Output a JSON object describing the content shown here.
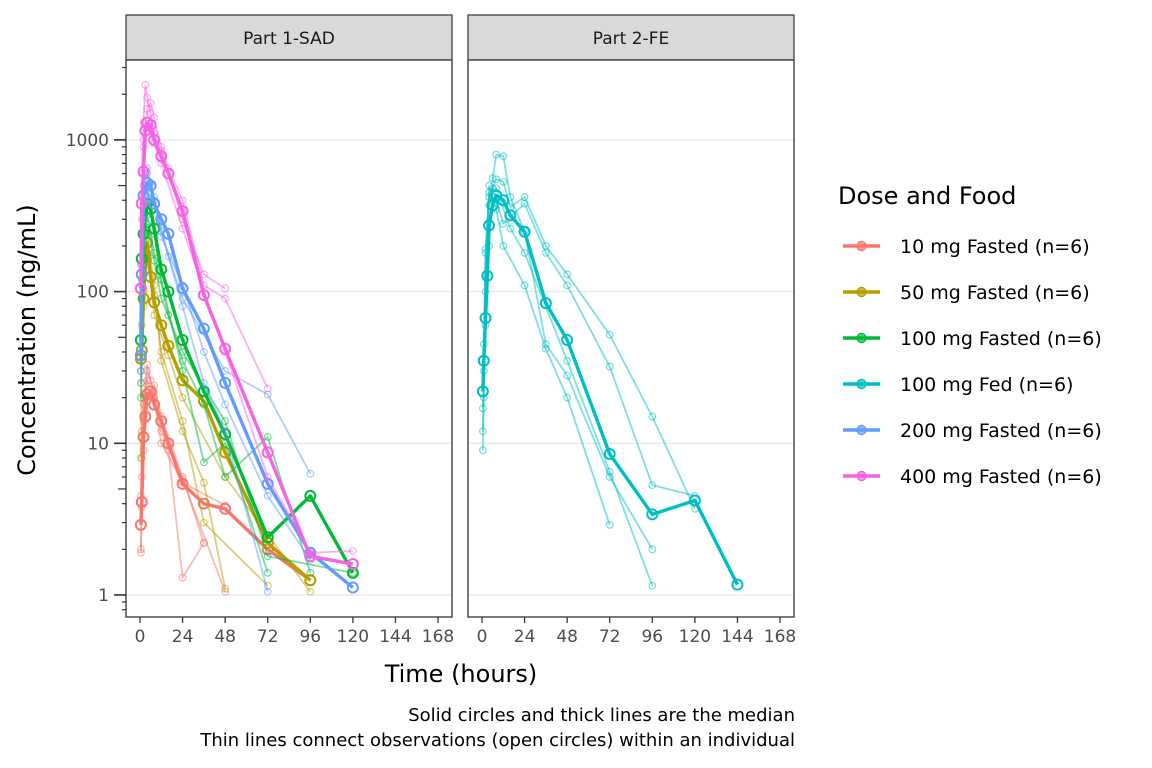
{
  "chart_data": {
    "type": "line",
    "scale_y": "log10",
    "xlabel": "Time (hours)",
    "ylabel": "Concentration (ng/mL)",
    "ylim": [
      0.75,
      3300
    ],
    "xlim": [
      -8,
      176
    ],
    "x_ticks": [
      0,
      24,
      48,
      72,
      96,
      120,
      144,
      168
    ],
    "x_tick_labels": [
      "0",
      "24",
      "48",
      "72",
      "96",
      "120",
      "144",
      "168"
    ],
    "y_ticks": [
      1,
      10,
      100,
      1000
    ],
    "y_tick_labels": [
      "1",
      "10",
      "100",
      "1000"
    ],
    "grid": "horizontal-major",
    "legend_title": "Dose and Food",
    "legend_position": "right",
    "caption_lines": [
      "Solid circles and thick lines are the median",
      "Thin lines connect observations (open circles) within an individual"
    ],
    "panels": [
      {
        "title": "Part 1-SAD",
        "series": [
          {
            "name": "10 mg Fasted (n=6)",
            "color": "#F8766D",
            "median": {
              "x": [
                0.5,
                1,
                2,
                3,
                4,
                6,
                8,
                12,
                16,
                24,
                36,
                48,
                72,
                96
              ],
              "y": [
                2.9,
                4.1,
                11,
                15,
                21,
                22,
                18,
                14,
                10,
                5.4,
                4.0,
                3.7,
                2.0,
                1.25
              ]
            },
            "individuals": [
              {
                "x": [
                  0.5,
                  1,
                  2,
                  4,
                  8,
                  12,
                  24,
                  36
                ],
                "y": [
                  1.9,
                  3.8,
                  9,
                  19,
                  24,
                  15,
                  6,
                  2.2
                ]
              },
              {
                "x": [
                  0.5,
                  1,
                  2,
                  4,
                  8,
                  16,
                  24,
                  36
                ],
                "y": [
                  2.0,
                  6,
                  14,
                  30,
                  22,
                  9,
                  1.3,
                  2.2
                ]
              },
              {
                "x": [
                  0.5,
                  1,
                  2,
                  4,
                  6,
                  12,
                  24,
                  48
                ],
                "y": [
                  4.5,
                  12,
                  20,
                  33,
                  26,
                  12,
                  5.8,
                  1.05
                ]
              },
              {
                "x": [
                  1,
                  2,
                  4,
                  8,
                  12,
                  24,
                  48
                ],
                "y": [
                  8,
                  18,
                  26,
                  20,
                  10,
                  5.5,
                  3.9
                ]
              }
            ]
          },
          {
            "name": "50 mg Fasted (n=6)",
            "color": "#B79F00",
            "median": {
              "x": [
                0.5,
                1,
                2,
                3,
                4,
                6,
                8,
                12,
                16,
                24,
                36,
                48,
                72,
                96
              ],
              "y": [
                36,
                41,
                90,
                170,
                210,
                125,
                85,
                60,
                44,
                26,
                19,
                8.7,
                2.2,
                1.25
              ]
            },
            "individuals": [
              {
                "x": [
                  0.5,
                  1,
                  2,
                  4,
                  8,
                  12,
                  24,
                  36,
                  48
                ],
                "y": [
                  8,
                  35,
                  80,
                  250,
                  110,
                  35,
                  12,
                  5.5,
                  1.1
                ]
              },
              {
                "x": [
                  1,
                  2,
                  4,
                  8,
                  16,
                  24,
                  48,
                  72,
                  96
                ],
                "y": [
                  60,
                  140,
                  180,
                  70,
                  38,
                  20,
                  6,
                  2.5,
                  1.05
                ]
              },
              {
                "x": [
                  0.5,
                  2,
                  4,
                  8,
                  12,
                  24,
                  36,
                  72
                ],
                "y": [
                  25,
                  100,
                  160,
                  95,
                  40,
                  14,
                  3.0,
                  1.15
                ]
              }
            ]
          },
          {
            "name": "100 mg Fasted (n=6)",
            "color": "#00BA38",
            "median": {
              "x": [
                0.5,
                1,
                2,
                4,
                6,
                8,
                12,
                16,
                24,
                36,
                48,
                72,
                96,
                120
              ],
              "y": [
                48,
                165,
                240,
                380,
                350,
                260,
                140,
                100,
                48,
                22,
                11.5,
                2.4,
                4.5,
                1.4
              ]
            },
            "individuals": [
              {
                "x": [
                  0.5,
                  1,
                  2,
                  4,
                  8,
                  12,
                  24,
                  36,
                  48,
                  72
                ],
                "y": [
                  30,
                  120,
                  300,
                  420,
                  240,
                  120,
                  30,
                  7.5,
                  10,
                  1.4
                ]
              },
              {
                "x": [
                  1,
                  2,
                  4,
                  8,
                  16,
                  24,
                  36,
                  48,
                  72,
                  96
                ],
                "y": [
                  90,
                  200,
                  320,
                  180,
                  70,
                  35,
                  18,
                  6,
                  11,
                  1.4
                ]
              },
              {
                "x": [
                  0.5,
                  2,
                  4,
                  8,
                  12,
                  24,
                  48,
                  72,
                  120
                ],
                "y": [
                  20,
                  150,
                  280,
                  160,
                  90,
                  40,
                  14,
                  1.8,
                  1.4
                ]
              }
            ]
          },
          {
            "name": "200 mg Fasted (n=6)",
            "color": "#619CFF",
            "median": {
              "x": [
                0.5,
                1,
                2,
                4,
                6,
                8,
                12,
                16,
                24,
                36,
                48,
                72,
                96,
                120
              ],
              "y": [
                38,
                130,
                430,
                520,
                500,
                380,
                300,
                240,
                105,
                57,
                25,
                5.4,
                1.9,
                1.12
              ]
            },
            "individuals": [
              {
                "x": [
                  0.5,
                  1,
                  2,
                  4,
                  8,
                  12,
                  24,
                  36,
                  48,
                  72
                ],
                "y": [
                  25,
                  110,
                  380,
                  600,
                  420,
                  250,
                  80,
                  25,
                  12,
                  1.05
                ]
              },
              {
                "x": [
                  1,
                  2,
                  4,
                  8,
                  16,
                  24,
                  48,
                  72,
                  96
                ],
                "y": [
                  150,
                  500,
                  650,
                  400,
                  170,
                  90,
                  30,
                  21,
                  6.3
                ]
              },
              {
                "x": [
                  0.5,
                  2,
                  4,
                  6,
                  12,
                  24,
                  36,
                  48,
                  72,
                  96
                ],
                "y": [
                  30,
                  300,
                  480,
                  520,
                  230,
                  110,
                  40,
                  18,
                  4.5,
                  1.7
                ]
              }
            ]
          },
          {
            "name": "400 mg Fasted (n=6)",
            "color": "#F564E3",
            "median": {
              "x": [
                0.5,
                1,
                2,
                3,
                4,
                6,
                8,
                12,
                16,
                24,
                36,
                48,
                72,
                96,
                120
              ],
              "y": [
                105,
                380,
                620,
                1150,
                1300,
                1250,
                1000,
                780,
                600,
                340,
                95,
                42,
                8.7,
                1.8,
                1.6
              ]
            },
            "individuals": [
              {
                "x": [
                  1,
                  2,
                  3,
                  4,
                  6,
                  8,
                  12,
                  24,
                  36,
                  48
                ],
                "y": [
                  600,
                  1300,
                  2300,
                  1900,
                  1500,
                  1100,
                  850,
                  300,
                  130,
                  105
                ]
              },
              {
                "x": [
                  0.5,
                  2,
                  4,
                  6,
                  8,
                  12,
                  16,
                  24,
                  36,
                  48,
                  72
                ],
                "y": [
                  150,
                  900,
                  1600,
                  1750,
                  1400,
                  900,
                  650,
                  400,
                  110,
                  90,
                  23
                ]
              },
              {
                "x": [
                  1,
                  2,
                  4,
                  8,
                  12,
                  24,
                  48,
                  72,
                  96,
                  120
                ],
                "y": [
                  300,
                  1000,
                  1200,
                  950,
                  700,
                  260,
                  40,
                  6,
                  1.9,
                  1.95
                ]
              }
            ]
          }
        ]
      },
      {
        "title": "Part 2-FE",
        "series": [
          {
            "name": "100 mg Fed (n=6)",
            "color": "#00BFC4",
            "median": {
              "x": [
                0.5,
                1,
                2,
                3,
                4,
                6,
                8,
                12,
                16,
                24,
                36,
                48,
                72,
                96,
                120,
                144
              ],
              "y": [
                22,
                35,
                67,
                127,
                273,
                370,
                430,
                400,
                318,
                248,
                84,
                48,
                8.5,
                3.4,
                4.2,
                1.17
              ]
            },
            "individuals": [
              {
                "x": [
                  0.5,
                  1,
                  2,
                  4,
                  6,
                  8,
                  12,
                  16,
                  24,
                  36,
                  48,
                  72,
                  96
                ],
                "y": [
                  9,
                  20,
                  60,
                  200,
                  560,
                  800,
                  780,
                  420,
                  250,
                  45,
                  28,
                  6.0,
                  2.0
                ]
              },
              {
                "x": [
                  0.5,
                  2,
                  4,
                  6,
                  8,
                  12,
                  24,
                  36,
                  48,
                  72
                ],
                "y": [
                  12,
                  130,
                  500,
                  420,
                  350,
                  200,
                  110,
                  42,
                  20,
                  2.9
                ]
              },
              {
                "x": [
                  1,
                  2,
                  4,
                  8,
                  12,
                  16,
                  24,
                  36,
                  48,
                  72,
                  96,
                  120
                ],
                "y": [
                  30,
                  190,
                  420,
                  550,
                  530,
                  360,
                  420,
                  200,
                  130,
                  52,
                  15,
                  3.7
                ]
              },
              {
                "x": [
                  0.5,
                  2,
                  4,
                  6,
                  12,
                  24,
                  36,
                  48,
                  72,
                  96,
                  120
                ],
                "y": [
                  17,
                  100,
                  370,
                  480,
                  280,
                  380,
                  180,
                  110,
                  32,
                  5.3,
                  4.5
                ]
              },
              {
                "x": [
                  1,
                  2,
                  4,
                  8,
                  16,
                  24,
                  48,
                  72,
                  96
                ],
                "y": [
                  45,
                  180,
                  450,
                  480,
                  260,
                  180,
                  35,
                  6.5,
                  1.15
                ]
              }
            ]
          }
        ]
      }
    ]
  }
}
